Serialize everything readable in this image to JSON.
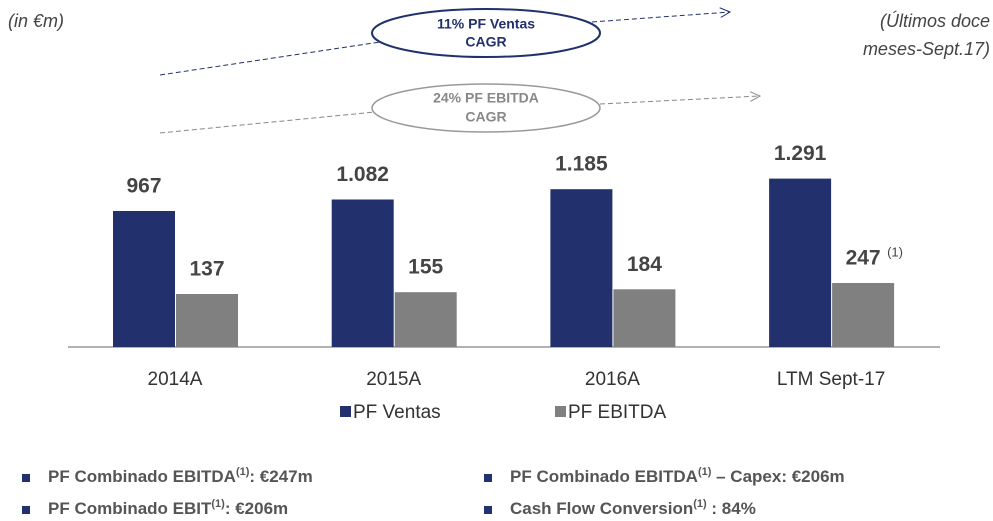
{
  "chart_data": {
    "type": "bar",
    "unit_note": "(in €m)",
    "period_note": [
      "(Últimos doce",
      "meses-Sept.17)"
    ],
    "cagr_notes": [
      {
        "lines": [
          "11% PF Ventas",
          "CAGR"
        ]
      },
      {
        "lines": [
          "24% PF EBITDA",
          "CAGR"
        ]
      }
    ],
    "categories": [
      "2014A",
      "2015A",
      "2016A",
      "LTM Sept-17"
    ],
    "series": [
      {
        "name": "PF Ventas",
        "color": "#22306e",
        "values": [
          967,
          1082,
          1185,
          1291
        ],
        "value_labels": [
          "967",
          "1.082",
          "1.185",
          "1.291"
        ]
      },
      {
        "name": "PF EBITDA",
        "color": "#808080",
        "values": [
          137,
          155,
          184,
          247
        ],
        "value_labels": [
          "137",
          "155",
          "184",
          "247"
        ]
      }
    ],
    "footnote_mark": "(1)",
    "ylim": [
      -393,
      1400
    ]
  },
  "bullets": [
    {
      "pre": "PF Combinado EBITDA",
      "sup": "(1)",
      "post": ": €247m"
    },
    {
      "pre": "PF Combinado EBITDA",
      "sup": "(1)",
      "post": " – Capex: €206m"
    },
    {
      "pre": "PF Combinado EBIT",
      "sup": "(1)",
      "post": ": €206m"
    },
    {
      "pre": "Cash Flow Conversion",
      "sup": "(1)",
      "post": " : 84%"
    }
  ]
}
